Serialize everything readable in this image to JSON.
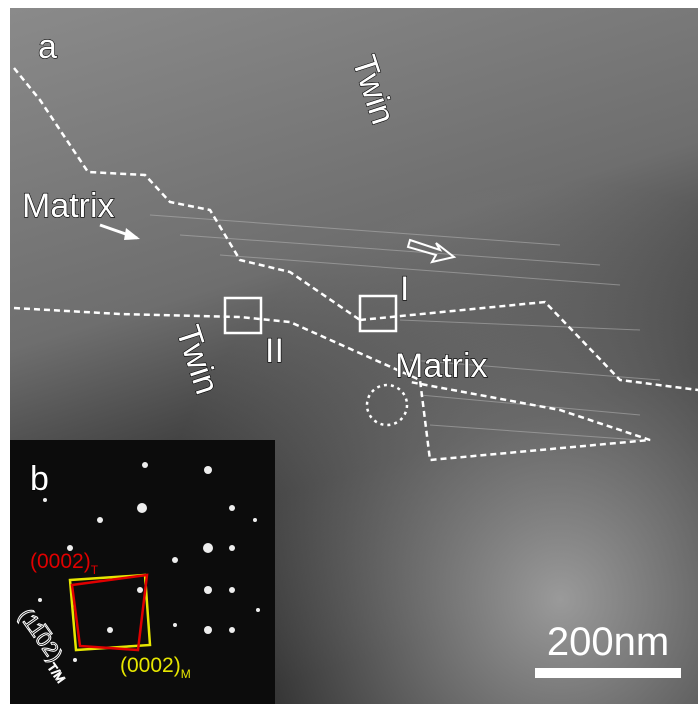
{
  "panel_a": {
    "label": "a",
    "twin_top": "Twin",
    "matrix_left": "Matrix",
    "marker_i": "I",
    "marker_ii": "II",
    "twin_bottom": "Twin",
    "matrix_right": "Matrix"
  },
  "panel_b": {
    "label": "b",
    "spot_t": {
      "text": "(0002)",
      "sub": "T"
    },
    "spot_m": {
      "text": "(0002)",
      "sub": "M"
    },
    "plane": {
      "text": "(11̅02)",
      "sub": "T/M"
    }
  },
  "scale_bar": "200nm"
}
